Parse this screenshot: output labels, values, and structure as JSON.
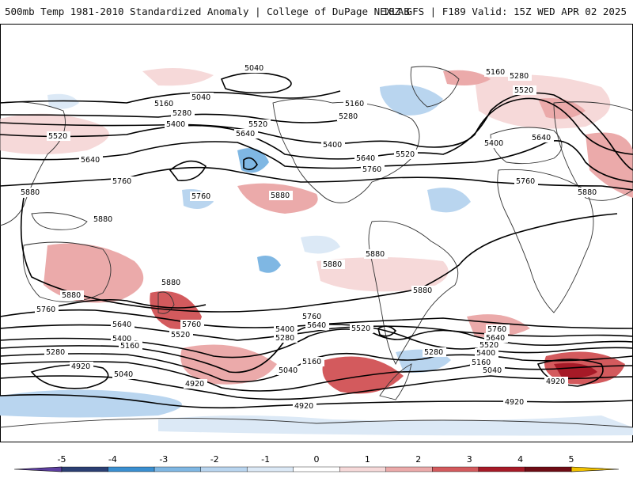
{
  "header": {
    "title": "500mb Temp 1981-2010 Standardized Anomaly | College of DuPage NEXLAB",
    "run_info": "18Z GFS | F189 Valid: 15Z WED APR 02 2025"
  },
  "map": {
    "contour_labels": {
      "c4920": "4920",
      "c5040": "5040",
      "c5160": "5160",
      "c5280": "5280",
      "c5400": "5400",
      "c5520": "5520",
      "c5640": "5640",
      "c5760": "5760",
      "c5880": "5880"
    }
  },
  "colorbar": {
    "ticks": [
      "-5",
      "-4",
      "-3",
      "-2",
      "-1",
      "0",
      "1",
      "2",
      "3",
      "4",
      "5"
    ],
    "colors": [
      "#2b3f73",
      "#3a8fd0",
      "#7fb7e3",
      "#b9d5ef",
      "#dce9f6",
      "#ffffff",
      "#f6d9d9",
      "#ebaaaa",
      "#d35a5d",
      "#a61a27",
      "#6e0c15"
    ],
    "low_arrow_color": "#5d3fa0",
    "high_arrow_color": "#f2c200"
  }
}
